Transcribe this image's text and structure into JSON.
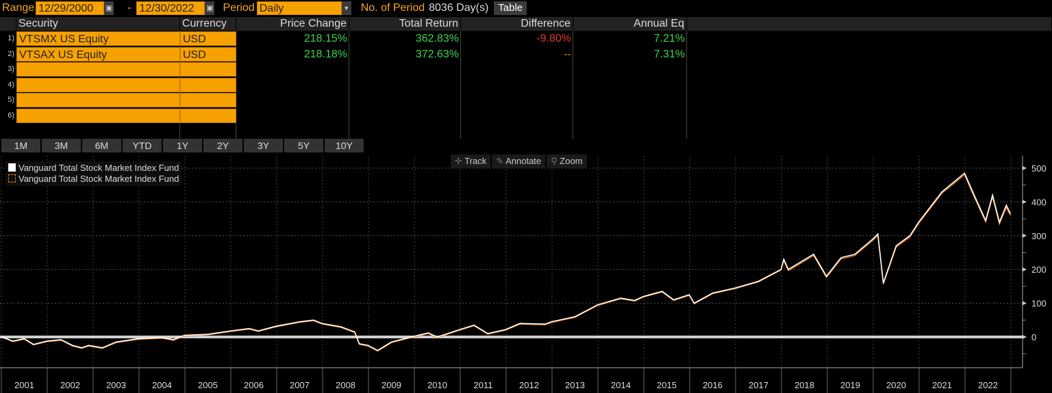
{
  "topbar": {
    "range_label": "Range",
    "start_date": "12/29/2000",
    "dash": "-",
    "end_date": "12/30/2022",
    "period_label": "Period",
    "period_value": "Daily",
    "num_period_label": "No. of Period",
    "num_period_value": "8036 Day(s)",
    "table_button": "Table"
  },
  "table": {
    "headers": [
      "Security",
      "Currency",
      "Price Change",
      "Total Return",
      "Difference",
      "Annual Eq"
    ],
    "row_numbers": [
      "1)",
      "2)",
      "3)",
      "4)",
      "5)",
      "6)"
    ],
    "rows": [
      {
        "security": "VTSMX US Equity",
        "currency": "USD",
        "price_change": "218.15%",
        "total_return": "362.83%",
        "difference": "-9.80%",
        "annual_eq": "7.21%"
      },
      {
        "security": "VTSAX US Equity",
        "currency": "USD",
        "price_change": "218.18%",
        "total_return": "372.63%",
        "difference": "--",
        "annual_eq": "7.31%"
      }
    ]
  },
  "period_buttons": [
    "1M",
    "3M",
    "6M",
    "YTD",
    "1Y",
    "2Y",
    "3Y",
    "5Y",
    "10Y"
  ],
  "tools": {
    "track": "Track",
    "annotate": "Annotate",
    "zoom": "Zoom"
  },
  "colors": {
    "orange": "#f7a100",
    "series_orange": "#f07a10",
    "series_white": "#ffffff",
    "positive": "#3fd54a",
    "negative": "#e23a2a"
  },
  "chart_data": {
    "type": "line",
    "legend": [
      "Vanguard Total Stock Market Index Fund",
      "Vanguard Total Stock Market Index Fund"
    ],
    "legend_position": "top-left",
    "x_ticks": [
      "2001",
      "2002",
      "2003",
      "2004",
      "2005",
      "2006",
      "2007",
      "2008",
      "2009",
      "2010",
      "2011",
      "2012",
      "2013",
      "2014",
      "2015",
      "2016",
      "2017",
      "2018",
      "2019",
      "2020",
      "2021",
      "2022"
    ],
    "y_ticks": [
      0,
      100,
      200,
      300,
      400,
      500
    ],
    "ylim": [
      -90,
      535
    ],
    "xlim": [
      2001,
      2023.3
    ],
    "grid": true,
    "y_axis_side": "right",
    "zero_line": 0,
    "x": [
      2001.0,
      2001.25,
      2001.5,
      2001.7,
      2002.0,
      2002.3,
      2002.55,
      2002.75,
      2002.9,
      2003.2,
      2003.5,
      2003.99,
      2004.5,
      2004.75,
      2004.99,
      2005.5,
      2006.0,
      2006.4,
      2006.6,
      2006.99,
      2007.5,
      2007.8,
      2007.99,
      2008.4,
      2008.7,
      2008.8,
      2008.99,
      2009.2,
      2009.5,
      2009.99,
      2010.3,
      2010.5,
      2010.99,
      2011.3,
      2011.6,
      2011.99,
      2012.3,
      2012.85,
      2012.99,
      2013.5,
      2013.99,
      2014.5,
      2014.8,
      2014.99,
      2015.4,
      2015.65,
      2015.99,
      2016.1,
      2016.5,
      2016.99,
      2017.5,
      2017.99,
      2018.05,
      2018.15,
      2018.7,
      2018.98,
      2019.3,
      2019.6,
      2019.99,
      2020.1,
      2020.22,
      2020.5,
      2020.8,
      2020.99,
      2021.5,
      2021.99,
      2022.2,
      2022.45,
      2022.6,
      2022.75,
      2022.9,
      2022.99
    ],
    "series": [
      {
        "name": "Vanguard Total Stock Market Index Fund",
        "values": [
          0,
          -12,
          -5,
          -22,
          -12,
          -8,
          -25,
          -32,
          -25,
          -32,
          -15,
          -5,
          -2,
          -8,
          5,
          8,
          18,
          25,
          18,
          32,
          45,
          50,
          40,
          30,
          15,
          -20,
          -25,
          -40,
          -15,
          2,
          12,
          0,
          22,
          35,
          10,
          22,
          40,
          38,
          45,
          60,
          95,
          115,
          108,
          120,
          135,
          110,
          125,
          100,
          130,
          145,
          165,
          200,
          230,
          200,
          245,
          180,
          235,
          245,
          290,
          305,
          160,
          270,
          300,
          340,
          430,
          485,
          420,
          345,
          420,
          340,
          390,
          365
        ]
      },
      {
        "name": "Vanguard Total Stock Market Index Fund",
        "values": [
          0,
          -14,
          -7,
          -24,
          -14,
          -10,
          -27,
          -34,
          -27,
          -34,
          -17,
          -7,
          -4,
          -10,
          3,
          6,
          16,
          23,
          16,
          30,
          43,
          48,
          38,
          28,
          13,
          -22,
          -27,
          -42,
          -17,
          0,
          10,
          -2,
          20,
          33,
          8,
          20,
          38,
          36,
          43,
          58,
          93,
          113,
          106,
          118,
          133,
          108,
          123,
          98,
          128,
          143,
          163,
          198,
          226,
          196,
          241,
          176,
          231,
          241,
          286,
          300,
          156,
          266,
          296,
          336,
          426,
          480,
          414,
          340,
          414,
          334,
          384,
          360
        ]
      }
    ]
  }
}
